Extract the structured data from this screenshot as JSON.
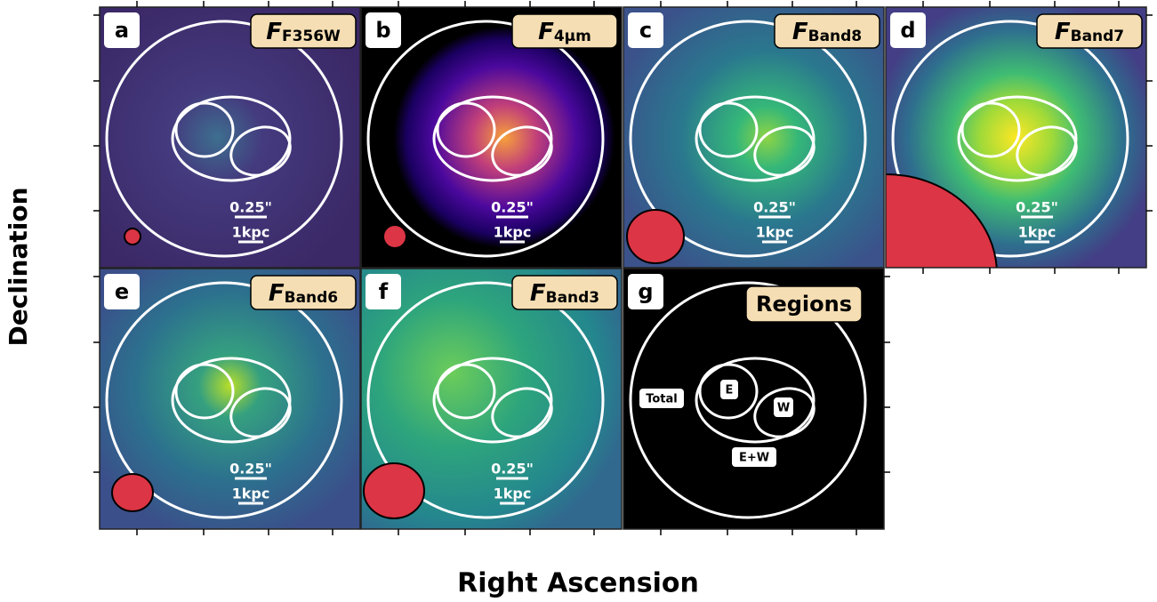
{
  "x_label": "Right Ascension",
  "y_label": "Declination",
  "panels": [
    {
      "letter": "a",
      "title": "F",
      "title_sub": "F356W",
      "scale_angle": "0.25\"",
      "scale_length": "1kpc"
    },
    {
      "letter": "b",
      "title": "F",
      "title_sub": "4µm",
      "scale_angle": "0.25\"",
      "scale_length": "1kpc"
    },
    {
      "letter": "c",
      "title": "F",
      "title_sub": "Band8",
      "scale_angle": "0.25\"",
      "scale_length": "1kpc"
    },
    {
      "letter": "d",
      "title": "F",
      "title_sub": "Band7",
      "scale_angle": "0.25\"",
      "scale_length": "1kpc"
    },
    {
      "letter": "e",
      "title": "F",
      "title_sub": "Band6",
      "scale_angle": "0.25\"",
      "scale_length": "1kpc"
    },
    {
      "letter": "f",
      "title": "F",
      "title_sub": "Band3",
      "scale_angle": "0.25\"",
      "scale_length": "1kpc"
    }
  ],
  "regions_panel": {
    "letter": "g",
    "title": "Regions",
    "total": "Total",
    "east": "E",
    "west": "W",
    "combined": "E+W"
  }
}
